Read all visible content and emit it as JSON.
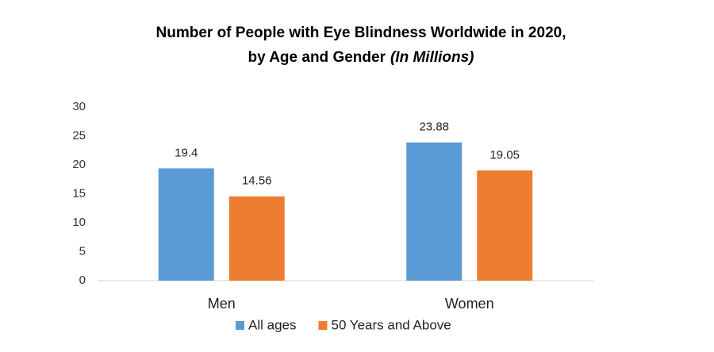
{
  "chart_data": {
    "type": "bar",
    "title": [
      "Number of People with Eye Blindness Worldwide in 2020,",
      "by Age and Gender"
    ],
    "title_note": "(In Millions)",
    "categories": [
      "Men",
      "Women"
    ],
    "series": [
      {
        "name": "All ages",
        "color": "#5b9bd5",
        "values": [
          19.4,
          23.88
        ]
      },
      {
        "name": "50 Years and Above",
        "color": "#ed7d31",
        "values": [
          14.56,
          19.05
        ]
      }
    ],
    "ylim": [
      0,
      30
    ],
    "yticks": [
      0,
      5,
      10,
      15,
      20,
      25,
      30
    ],
    "grid": false,
    "legend": "bottom"
  }
}
